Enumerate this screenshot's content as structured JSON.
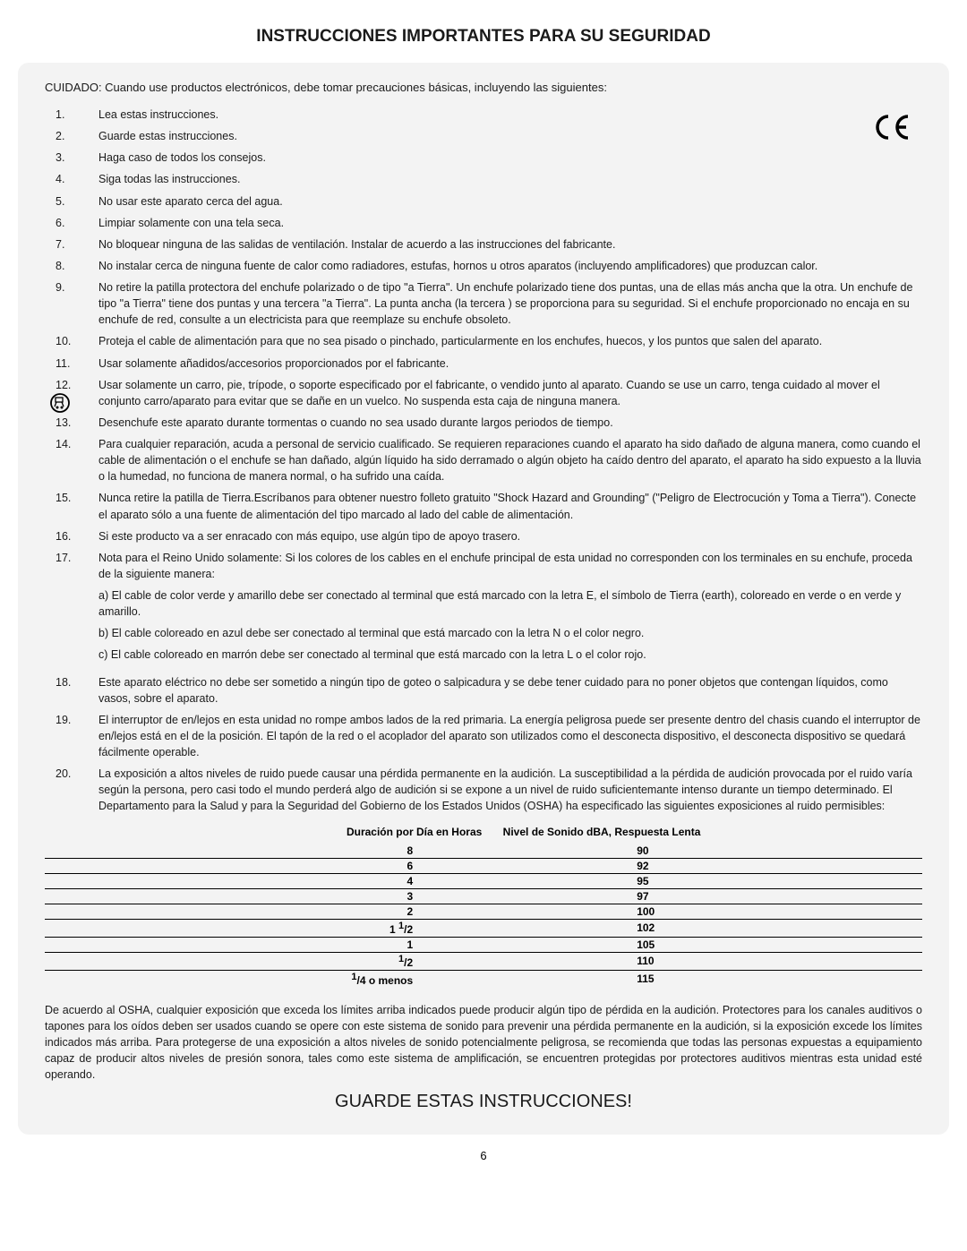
{
  "page_title": "INSTRUCCIONES IMPORTANTES PARA SU SEGURIDAD",
  "intro": "CUIDADO: Cuando use productos electrónicos, debe tomar precauciones básicas, incluyendo las siguientes:",
  "ce_mark": "C€",
  "items": [
    "Lea estas instrucciones.",
    "Guarde estas instrucciones.",
    "Haga caso de todos los consejos.",
    "Siga todas las instrucciones.",
    "No usar este aparato cerca del agua.",
    "Limpiar solamente con una tela seca.",
    "No bloquear ninguna de las salidas de ventilación. Instalar de acuerdo a las instrucciones del fabricante.",
    "No instalar cerca de ninguna fuente de calor como radiadores, estufas, hornos u otros aparatos (incluyendo amplificadores) que produzcan calor.",
    "No retire la patilla protectora del enchufe polarizado o de tipo \"a Tierra\". Un enchufe polarizado tiene dos puntas, una de ellas más ancha que la otra. Un enchufe de tipo \"a Tierra\" tiene dos puntas y una tercera \"a Tierra\". La punta ancha (la tercera ) se proporciona para su seguridad. Si el enchufe proporcionado no encaja en su enchufe de red, consulte a un electricista para que reemplaze su enchufe obsoleto.",
    "Proteja el cable de alimentación para que no sea pisado o pinchado, particularmente en los enchufes, huecos, y los puntos que salen del aparato.",
    "Usar solamente añadidos/accesorios proporcionados por el fabricante.",
    "Usar solamente un carro, pie, trípode, o soporte especificado por el fabricante, o vendido junto al aparato. Cuando se use un carro, tenga cuidado al mover el conjunto carro/aparato para evitar que se dañe en un vuelco. No suspenda esta caja de ninguna manera.",
    "Desenchufe este aparato durante tormentas o cuando no sea usado durante largos periodos de tiempo.",
    "Para cualquier reparación, acuda a personal de servicio cualificado. Se requieren reparaciones cuando el aparato ha sido dañado de alguna manera, como cuando el cable de alimentación o el enchufe se han dañado, algún líquido ha sido derramado o algún objeto ha caído dentro del aparato, el aparato ha sido expuesto a la lluvia o la humedad, no funciona de manera normal, o ha sufrido una caída.",
    "Nunca retire la patilla de Tierra.Escríbanos para obtener nuestro folleto gratuito \"Shock Hazard and Grounding\" (\"Peligro de Electrocución y Toma a Tierra\"). Conecte el aparato sólo a una fuente de alimentación del tipo marcado al lado del cable de alimentación.",
    "Si este producto va a ser enracado con más equipo, use algún tipo de apoyo trasero.",
    "Nota para el Reino Unido solamente: Si los colores de los cables en el enchufe principal de esta unidad no corresponden con los terminales en su enchufe, proceda de la siguiente manera:",
    "Este aparato eléctrico no debe ser sometido a ningún tipo de goteo o salpicadura y se debe tener cuidado para no poner objetos que contengan líquidos, como vasos, sobre el aparato.",
    "El interruptor de en/lejos en esta unidad no rompe ambos lados de la red primaria. La energía peligrosa puede ser presente dentro del chasis cuando el interruptor de en/lejos está en el de la posición. El tapón de la red o el acoplador del aparato son utilizados como el desconecta dispositivo, el desconecta dispositivo se quedará fácilmente operable.",
    "La exposición a altos niveles de ruido puede causar  una pérdida permanente en la audición. La susceptibilidad a la pérdida de audición provocada por el ruido varía según la persona, pero casi todo el mundo perderá algo de audición si se expone a un nivel de ruido suficientemante intenso durante un tiempo determinado. El Departamento para la Salud y para la Seguridad del Gobierno de los Estados Unidos (OSHA) ha especificado las siguientes exposiciones al ruido permisibles:"
  ],
  "item17_sub": [
    "a) El cable de color verde y amarillo debe ser conectado al terminal que está marcado con la letra E, el símbolo de Tierra (earth), coloreado en verde o en verde y amarillo.",
    "b) El cable coloreado en azul debe ser conectado al terminal  que está marcado con la letra N o el color negro.",
    "c) El cable coloreado en marrón debe ser conectado al terminal que está marcado con la letra L o  el color rojo."
  ],
  "table": {
    "header_left": "Duración por Día en Horas",
    "header_right": "Nivel de Sonido dBA, Respuesta Lenta",
    "rows": [
      {
        "dur": "8",
        "lvl": "90"
      },
      {
        "dur": "6",
        "lvl": "92"
      },
      {
        "dur": "4",
        "lvl": "95"
      },
      {
        "dur": "3",
        "lvl": "97"
      },
      {
        "dur": "2",
        "lvl": "100"
      },
      {
        "dur": "1 ½",
        "lvl": "102",
        "frac_num": "1",
        "frac_den": "2",
        "prefix": "1 "
      },
      {
        "dur": "1",
        "lvl": "105"
      },
      {
        "dur": "½",
        "lvl": "110",
        "frac_num": "1",
        "frac_den": "2",
        "prefix": ""
      },
      {
        "dur": "¼ o menos",
        "lvl": "115",
        "frac_num": "1",
        "frac_den": "4",
        "prefix": "",
        "suffix": " o menos"
      }
    ]
  },
  "closing": "De acuerdo al OSHA, cualquier exposición que exceda los límites arriba indicados puede producir algún tipo de pérdida en la audición. Protectores para los canales auditivos o tapones para los oídos deben ser usados cuando se opere con este sistema de sonido para prevenir una pérdida permanente en la audición, si la exposición excede los límites indicados más arriba. Para  protegerse de una exposición a altos niveles de sonido potencialmente peligrosa, se recomienda que todas las personas  expuestas a equipamiento capaz de producir altos niveles de presión sonora, tales como este sistema de amplificación, se encuentren protegidas por protectores auditivos mientras esta unidad esté operando.",
  "footer_title": "GUARDE ESTAS INSTRUCCIONES!",
  "page_number": "6"
}
